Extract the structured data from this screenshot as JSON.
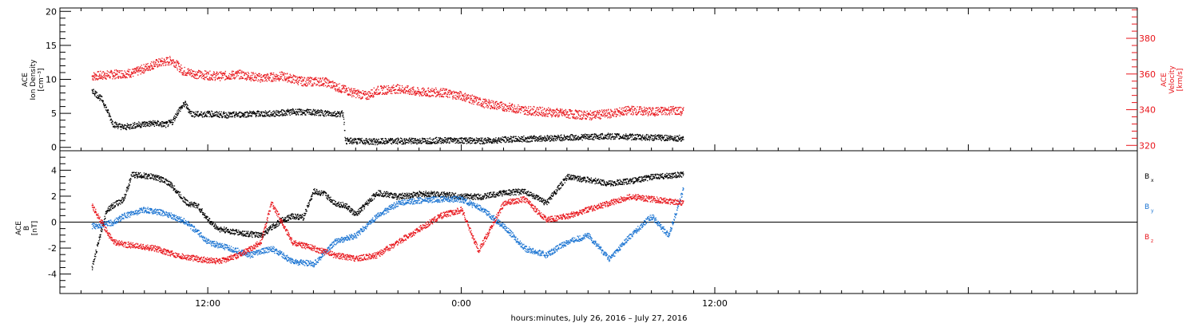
{
  "chart_data": [
    {
      "type": "scatter",
      "panel": "top",
      "ylabel_left": [
        "ACE",
        "Ion Density",
        "[cm⁻³]"
      ],
      "ylabel_right": [
        "ACE",
        "Velocity",
        "[km/s]"
      ],
      "ylim_left": [
        -0.5,
        20.5
      ],
      "ylim_right": [
        317,
        397
      ],
      "yticks_left": [
        "0",
        "5",
        "10",
        "15",
        "20"
      ],
      "yticks_right": [
        "320",
        "340",
        "360",
        "380"
      ],
      "series": [
        {
          "axis": "left",
          "color": "#000000",
          "points": [
            [
              6.5,
              8.5
            ],
            [
              7.0,
              7.0
            ],
            [
              7.5,
              3.5
            ],
            [
              8.0,
              3.0
            ],
            [
              8.5,
              3.3
            ],
            [
              9.0,
              3.5
            ],
            [
              9.5,
              3.6
            ],
            [
              10.0,
              3.4
            ],
            [
              10.3,
              3.8
            ],
            [
              10.6,
              5.5
            ],
            [
              10.9,
              6.5
            ],
            [
              11.2,
              5.0
            ],
            [
              11.6,
              4.9
            ],
            [
              12.0,
              5.0
            ],
            [
              13.0,
              4.8
            ],
            [
              14.0,
              5.0
            ],
            [
              15.0,
              5.0
            ],
            [
              16.0,
              5.3
            ],
            [
              17.0,
              5.2
            ],
            [
              18.0,
              5.0
            ],
            [
              18.4,
              5.0
            ],
            [
              18.5,
              1.0
            ],
            [
              19.0,
              1.0
            ],
            [
              20.0,
              0.9
            ],
            [
              21.0,
              1.0
            ],
            [
              22.0,
              1.0
            ],
            [
              23.0,
              1.1
            ],
            [
              24.0,
              1.1
            ],
            [
              25.0,
              1.0
            ],
            [
              26.0,
              1.2
            ],
            [
              27.0,
              1.3
            ],
            [
              28.0,
              1.4
            ],
            [
              29.0,
              1.5
            ],
            [
              30.0,
              1.6
            ],
            [
              31.0,
              1.7
            ],
            [
              32.0,
              1.6
            ],
            [
              33.0,
              1.5
            ],
            [
              34.5,
              1.4
            ]
          ]
        },
        {
          "axis": "right",
          "color": "#e8151b",
          "points": [
            [
              6.5,
              359
            ],
            [
              7.5,
              360
            ],
            [
              8.5,
              361
            ],
            [
              9.5,
              366
            ],
            [
              10.3,
              368
            ],
            [
              10.8,
              362
            ],
            [
              11.5,
              360
            ],
            [
              12.5,
              359
            ],
            [
              13.5,
              360
            ],
            [
              14.5,
              358
            ],
            [
              15.5,
              359
            ],
            [
              16.5,
              356
            ],
            [
              17.5,
              356
            ],
            [
              18.3,
              352
            ],
            [
              18.8,
              350
            ],
            [
              19.5,
              348
            ],
            [
              20.0,
              351
            ],
            [
              21.0,
              352
            ],
            [
              22.0,
              350
            ],
            [
              23.0,
              350
            ],
            [
              24.0,
              348
            ],
            [
              25.0,
              344
            ],
            [
              26.0,
              342
            ],
            [
              27.0,
              340
            ],
            [
              28.0,
              339
            ],
            [
              29.0,
              338
            ],
            [
              30.0,
              337
            ],
            [
              31.0,
              338
            ],
            [
              32.0,
              340
            ],
            [
              33.0,
              339
            ],
            [
              34.0,
              340
            ],
            [
              34.5,
              339
            ]
          ]
        }
      ]
    },
    {
      "type": "scatter",
      "panel": "bottom",
      "ylabel_left": [
        "ACE",
        "B",
        "[nT]"
      ],
      "ylim": [
        -5.5,
        5.5
      ],
      "yticks": [
        "-4",
        "-2",
        "0",
        "2",
        "4"
      ],
      "legend": [
        "B",
        "B",
        "B"
      ],
      "legend_subscripts": [
        "x",
        "y",
        "z"
      ],
      "series": [
        {
          "name": "Bx",
          "color": "#000000",
          "points": [
            [
              6.5,
              -3.5
            ],
            [
              7.2,
              1.0
            ],
            [
              8.0,
              1.8
            ],
            [
              8.4,
              3.7
            ],
            [
              9.0,
              3.6
            ],
            [
              9.5,
              3.5
            ],
            [
              10.0,
              3.2
            ],
            [
              10.3,
              2.8
            ],
            [
              11.0,
              1.5
            ],
            [
              11.5,
              1.3
            ],
            [
              12.0,
              0.2
            ],
            [
              12.5,
              -0.5
            ],
            [
              13.5,
              -0.8
            ],
            [
              14.5,
              -1.0
            ],
            [
              15.5,
              0.2
            ],
            [
              16.0,
              0.5
            ],
            [
              16.5,
              0.4
            ],
            [
              17.0,
              2.4
            ],
            [
              17.5,
              2.2
            ],
            [
              18.0,
              1.5
            ],
            [
              18.5,
              1.3
            ],
            [
              19.0,
              0.6
            ],
            [
              20.0,
              2.3
            ],
            [
              21.0,
              2.0
            ],
            [
              22.0,
              2.2
            ],
            [
              23.0,
              2.2
            ],
            [
              24.0,
              2.0
            ],
            [
              25.0,
              2.0
            ],
            [
              26.0,
              2.3
            ],
            [
              27.0,
              2.4
            ],
            [
              28.0,
              1.5
            ],
            [
              29.0,
              3.5
            ],
            [
              30.0,
              3.3
            ],
            [
              31.0,
              3.0
            ],
            [
              32.0,
              3.2
            ],
            [
              33.0,
              3.5
            ],
            [
              34.5,
              3.7
            ]
          ]
        },
        {
          "name": "By",
          "color": "#1b74d2",
          "points": [
            [
              6.5,
              -0.3
            ],
            [
              7.5,
              0.0
            ],
            [
              8.0,
              0.5
            ],
            [
              9.0,
              1.0
            ],
            [
              10.0,
              0.7
            ],
            [
              11.0,
              0.0
            ],
            [
              12.0,
              -1.5
            ],
            [
              13.0,
              -2.0
            ],
            [
              14.0,
              -2.5
            ],
            [
              15.0,
              -2.0
            ],
            [
              16.0,
              -3.0
            ],
            [
              17.0,
              -3.2
            ],
            [
              18.0,
              -1.5
            ],
            [
              19.0,
              -1.0
            ],
            [
              20.0,
              0.5
            ],
            [
              21.0,
              1.5
            ],
            [
              22.0,
              1.7
            ],
            [
              23.0,
              1.8
            ],
            [
              24.0,
              1.8
            ],
            [
              25.0,
              1.0
            ],
            [
              26.0,
              -0.3
            ],
            [
              27.0,
              -2.0
            ],
            [
              28.0,
              -2.5
            ],
            [
              29.0,
              -1.5
            ],
            [
              30.0,
              -1.0
            ],
            [
              31.0,
              -2.8
            ],
            [
              32.0,
              -1.0
            ],
            [
              33.0,
              0.5
            ],
            [
              33.8,
              -1.0
            ],
            [
              34.5,
              2.6
            ]
          ]
        },
        {
          "name": "Bz",
          "color": "#e8151b",
          "points": [
            [
              6.5,
              1.3
            ],
            [
              7.5,
              -1.5
            ],
            [
              8.5,
              -1.8
            ],
            [
              9.5,
              -2.0
            ],
            [
              10.5,
              -2.5
            ],
            [
              11.5,
              -2.8
            ],
            [
              12.5,
              -3.0
            ],
            [
              13.5,
              -2.5
            ],
            [
              14.5,
              -1.5
            ],
            [
              15.0,
              1.5
            ],
            [
              15.5,
              0.0
            ],
            [
              16.0,
              -1.5
            ],
            [
              17.0,
              -2.0
            ],
            [
              18.0,
              -2.5
            ],
            [
              19.0,
              -2.8
            ],
            [
              20.0,
              -2.5
            ],
            [
              21.0,
              -1.5
            ],
            [
              22.0,
              -0.5
            ],
            [
              23.0,
              0.5
            ],
            [
              24.0,
              1.0
            ],
            [
              24.8,
              -2.2
            ],
            [
              26.0,
              1.5
            ],
            [
              27.0,
              1.8
            ],
            [
              28.0,
              0.2
            ],
            [
              29.0,
              0.5
            ],
            [
              30.0,
              1.0
            ],
            [
              31.0,
              1.5
            ],
            [
              32.0,
              2.0
            ],
            [
              33.0,
              1.8
            ],
            [
              34.0,
              1.6
            ],
            [
              34.5,
              1.5
            ]
          ]
        }
      ]
    }
  ],
  "x_axis": {
    "range_hours": [
      5.0,
      56.0
    ],
    "tick_labels": [
      {
        "label": "12:00",
        "hour": 12
      },
      {
        "label": "0:00",
        "hour": 24
      },
      {
        "label": "12:00",
        "hour": 36
      }
    ],
    "title": "hours:minutes, July 26, 2016 – July 27, 2016"
  }
}
